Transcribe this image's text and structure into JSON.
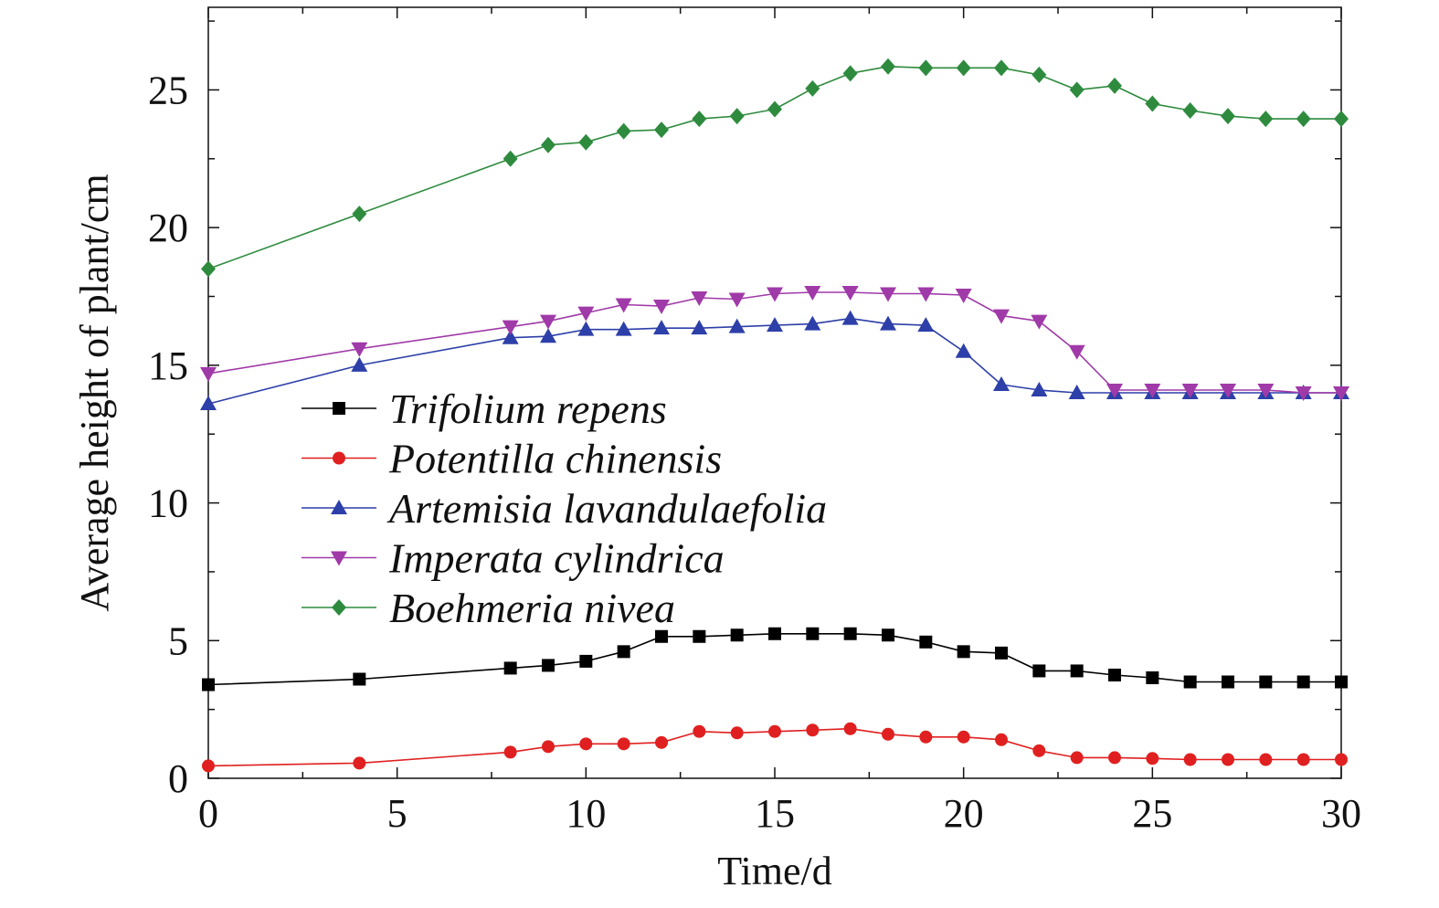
{
  "chart_data": {
    "type": "line",
    "xlabel": "Time/d",
    "ylabel": "Average height of plant/cm",
    "xlim": [
      0,
      30
    ],
    "ylim": [
      0,
      28
    ],
    "xticks": [
      0,
      5,
      10,
      15,
      20,
      25,
      30
    ],
    "yticks": [
      0,
      5,
      10,
      15,
      20,
      25
    ],
    "x_tick_labels": [
      "0",
      "5",
      "10",
      "15",
      "20",
      "25",
      "30"
    ],
    "y_tick_labels": [
      "0",
      "5",
      "10",
      "15",
      "20",
      "25"
    ],
    "grid": false,
    "legend_position": "center-left",
    "series": [
      {
        "name": "Trifolium repens",
        "color": "#000000",
        "marker": "square",
        "x": [
          0,
          4,
          8,
          9,
          10,
          11,
          12,
          13,
          14,
          15,
          16,
          17,
          18,
          19,
          20,
          21,
          22,
          23,
          24,
          25,
          26,
          27,
          28,
          29,
          30
        ],
        "y": [
          3.4,
          3.6,
          4.0,
          4.1,
          4.25,
          4.6,
          5.15,
          5.15,
          5.2,
          5.25,
          5.25,
          5.25,
          5.2,
          4.95,
          4.6,
          4.55,
          3.9,
          3.9,
          3.75,
          3.65,
          3.5,
          3.5,
          3.5,
          3.5,
          3.5
        ]
      },
      {
        "name": "Potentilla chinensis",
        "color": "#e02020",
        "marker": "circle",
        "x": [
          0,
          4,
          8,
          9,
          10,
          11,
          12,
          13,
          14,
          15,
          16,
          17,
          18,
          19,
          20,
          21,
          22,
          23,
          24,
          25,
          26,
          27,
          28,
          29,
          30
        ],
        "y": [
          0.45,
          0.55,
          0.95,
          1.15,
          1.25,
          1.25,
          1.3,
          1.7,
          1.65,
          1.7,
          1.75,
          1.8,
          1.6,
          1.5,
          1.5,
          1.4,
          1.0,
          0.75,
          0.75,
          0.72,
          0.68,
          0.68,
          0.68,
          0.68,
          0.68
        ]
      },
      {
        "name": "Artemisia lavandulaefolia",
        "color": "#2d3fa8",
        "marker": "triangle-up",
        "x": [
          0,
          4,
          8,
          9,
          10,
          11,
          12,
          13,
          14,
          15,
          16,
          17,
          18,
          19,
          20,
          21,
          22,
          23,
          24,
          25,
          26,
          27,
          28,
          29,
          30
        ],
        "y": [
          13.6,
          15.0,
          16.0,
          16.05,
          16.3,
          16.3,
          16.35,
          16.35,
          16.4,
          16.45,
          16.5,
          16.7,
          16.5,
          16.45,
          15.5,
          14.3,
          14.1,
          14.0,
          14.0,
          14.0,
          14.0,
          14.0,
          14.0,
          14.0,
          14.0
        ]
      },
      {
        "name": "Imperata cylindrica",
        "color": "#a03aa8",
        "marker": "triangle-down",
        "x": [
          0,
          4,
          8,
          9,
          10,
          11,
          12,
          13,
          14,
          15,
          16,
          17,
          18,
          19,
          20,
          21,
          22,
          23,
          24,
          25,
          26,
          27,
          28,
          29,
          30
        ],
        "y": [
          14.7,
          15.6,
          16.4,
          16.6,
          16.9,
          17.2,
          17.15,
          17.45,
          17.4,
          17.6,
          17.65,
          17.65,
          17.6,
          17.6,
          17.55,
          16.8,
          16.6,
          15.5,
          14.1,
          14.1,
          14.1,
          14.1,
          14.1,
          14.0,
          14.0
        ]
      },
      {
        "name": "Boehmeria nivea",
        "color": "#2e8b3e",
        "marker": "diamond",
        "x": [
          0,
          4,
          8,
          9,
          10,
          11,
          12,
          13,
          14,
          15,
          16,
          17,
          18,
          19,
          20,
          21,
          22,
          23,
          24,
          25,
          26,
          27,
          28,
          29,
          30
        ],
        "y": [
          18.5,
          20.5,
          22.5,
          23.0,
          23.1,
          23.5,
          23.55,
          23.95,
          24.05,
          24.3,
          25.05,
          25.6,
          25.85,
          25.8,
          25.8,
          25.8,
          25.55,
          25.0,
          25.15,
          24.5,
          24.25,
          24.05,
          23.95,
          23.95,
          23.95
        ]
      }
    ]
  }
}
